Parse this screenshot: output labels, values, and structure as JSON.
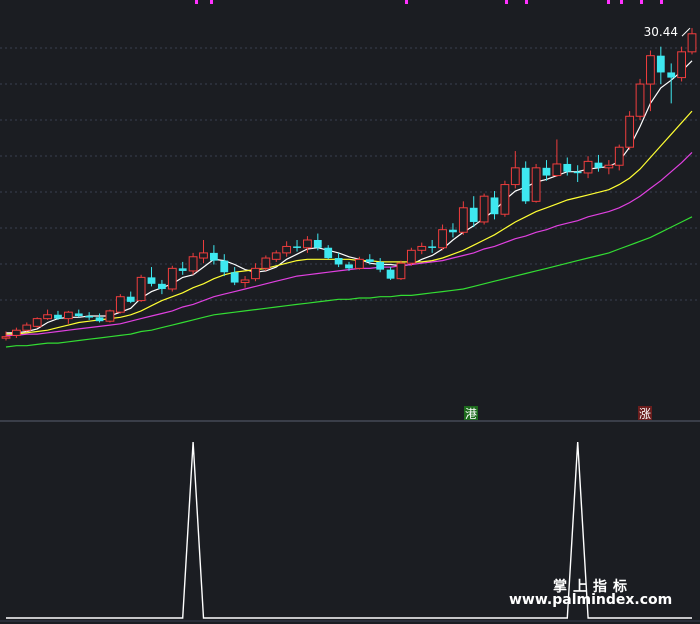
{
  "chart_data": [
    {
      "type": "candlestick",
      "panel": "main",
      "price_label": "30.44",
      "ylim": [
        5,
        32
      ],
      "grid": true,
      "candles": [
        [
          6.5,
          6.9,
          6.2,
          6.5
        ],
        [
          6.6,
          7.2,
          6.4,
          7.0
        ],
        [
          7.0,
          7.6,
          6.9,
          7.4
        ],
        [
          7.3,
          8.0,
          7.2,
          7.9
        ],
        [
          7.9,
          8.6,
          7.8,
          8.2
        ],
        [
          8.2,
          8.5,
          7.8,
          7.9
        ],
        [
          7.9,
          8.5,
          7.5,
          8.4
        ],
        [
          8.3,
          8.6,
          8.0,
          8.1
        ],
        [
          8.1,
          8.4,
          7.8,
          8.0
        ],
        [
          8.0,
          8.3,
          7.6,
          7.7
        ],
        [
          7.7,
          8.6,
          7.6,
          8.5
        ],
        [
          8.4,
          9.8,
          8.3,
          9.6
        ],
        [
          9.6,
          10.0,
          9.1,
          9.2
        ],
        [
          9.3,
          11.3,
          9.2,
          11.1
        ],
        [
          11.1,
          11.9,
          10.4,
          10.6
        ],
        [
          10.6,
          10.9,
          9.8,
          10.2
        ],
        [
          10.2,
          12.0,
          10.0,
          11.8
        ],
        [
          11.8,
          12.3,
          11.3,
          11.6
        ],
        [
          11.6,
          13.0,
          11.3,
          12.7
        ],
        [
          12.6,
          14.0,
          12.2,
          13.0
        ],
        [
          13.0,
          13.6,
          12.1,
          12.4
        ],
        [
          12.4,
          12.9,
          11.2,
          11.5
        ],
        [
          11.5,
          11.9,
          10.5,
          10.7
        ],
        [
          10.7,
          11.2,
          10.3,
          10.9
        ],
        [
          11.0,
          12.2,
          10.8,
          11.8
        ],
        [
          11.8,
          12.8,
          11.6,
          12.6
        ],
        [
          12.5,
          13.2,
          12.3,
          13.0
        ],
        [
          13.0,
          13.9,
          12.7,
          13.5
        ],
        [
          13.5,
          14.0,
          13.1,
          13.4
        ],
        [
          13.4,
          14.3,
          13.0,
          14.0
        ],
        [
          14.0,
          14.5,
          13.2,
          13.4
        ],
        [
          13.4,
          13.6,
          12.5,
          12.6
        ],
        [
          12.6,
          13.0,
          11.9,
          12.1
        ],
        [
          12.1,
          12.3,
          11.6,
          11.8
        ],
        [
          11.8,
          12.7,
          11.7,
          12.5
        ],
        [
          12.5,
          12.9,
          12.1,
          12.3
        ],
        [
          12.3,
          12.6,
          11.5,
          11.7
        ],
        [
          11.7,
          11.9,
          10.9,
          11.0
        ],
        [
          11.0,
          12.4,
          10.9,
          12.2
        ],
        [
          12.2,
          13.4,
          12.0,
          13.2
        ],
        [
          13.2,
          13.8,
          12.9,
          13.5
        ],
        [
          13.5,
          14.0,
          13.0,
          13.4
        ],
        [
          13.4,
          15.2,
          13.2,
          14.8
        ],
        [
          14.8,
          15.3,
          14.2,
          14.6
        ],
        [
          14.6,
          17.0,
          14.4,
          16.5
        ],
        [
          16.5,
          17.4,
          15.0,
          15.4
        ],
        [
          15.4,
          17.6,
          15.2,
          17.4
        ],
        [
          17.3,
          17.8,
          15.6,
          16.0
        ],
        [
          16.0,
          18.6,
          15.8,
          18.3
        ],
        [
          18.3,
          20.9,
          18.0,
          19.6
        ],
        [
          19.6,
          20.1,
          16.8,
          17.0
        ],
        [
          17.0,
          19.9,
          16.9,
          19.6
        ],
        [
          19.6,
          20.2,
          18.6,
          19.0
        ],
        [
          19.0,
          21.8,
          18.9,
          19.9
        ],
        [
          19.9,
          20.4,
          19.0,
          19.3
        ],
        [
          19.3,
          19.8,
          18.5,
          19.2
        ],
        [
          19.2,
          20.5,
          18.8,
          20.1
        ],
        [
          20.0,
          20.6,
          19.3,
          19.6
        ],
        [
          19.6,
          20.2,
          19.1,
          19.8
        ],
        [
          19.8,
          21.4,
          19.4,
          21.2
        ],
        [
          21.2,
          24.0,
          21.0,
          23.6
        ],
        [
          23.6,
          26.5,
          23.3,
          26.1
        ],
        [
          26.1,
          28.7,
          24.0,
          28.3
        ],
        [
          28.3,
          29.0,
          26.1,
          27.0
        ],
        [
          27.0,
          27.7,
          24.6,
          26.6
        ],
        [
          26.6,
          29.0,
          26.3,
          28.6
        ],
        [
          28.6,
          30.44,
          28.4,
          30.0
        ]
      ],
      "series": [
        {
          "color": "#ffffff",
          "values": [
            6.8,
            6.8,
            6.9,
            7.1,
            7.6,
            7.9,
            8.0,
            8.0,
            8.1,
            8.1,
            8.1,
            8.4,
            8.7,
            9.5,
            10.0,
            10.3,
            10.6,
            11.1,
            11.3,
            11.9,
            12.5,
            12.4,
            12.1,
            11.7,
            11.5,
            11.6,
            11.9,
            12.5,
            12.9,
            13.3,
            13.4,
            13.2,
            13.0,
            12.7,
            12.5,
            12.2,
            12.1,
            12.1,
            12.0,
            12.1,
            12.5,
            12.8,
            13.3,
            14.0,
            14.6,
            15.1,
            15.7,
            16.3,
            17.1,
            17.8,
            18.1,
            18.5,
            18.7,
            19.0,
            19.3,
            19.3,
            19.5,
            19.6,
            19.7,
            20.1,
            21.2,
            22.8,
            24.6,
            25.8,
            26.4,
            27.1,
            27.9
          ]
        },
        {
          "color": "#ffff33",
          "values": [
            6.7,
            6.7,
            6.8,
            6.9,
            7.0,
            7.2,
            7.4,
            7.6,
            7.7,
            7.8,
            7.9,
            8.0,
            8.2,
            8.5,
            8.9,
            9.3,
            9.6,
            9.9,
            10.3,
            10.6,
            11.0,
            11.3,
            11.5,
            11.6,
            11.7,
            11.8,
            12.0,
            12.2,
            12.4,
            12.5,
            12.5,
            12.5,
            12.5,
            12.5,
            12.4,
            12.4,
            12.3,
            12.3,
            12.3,
            12.3,
            12.3,
            12.4,
            12.6,
            12.9,
            13.2,
            13.6,
            14.0,
            14.4,
            14.9,
            15.4,
            15.8,
            16.2,
            16.5,
            16.8,
            17.1,
            17.3,
            17.5,
            17.7,
            17.9,
            18.3,
            18.8,
            19.5,
            20.4,
            21.3,
            22.2,
            23.1,
            24.0
          ]
        },
        {
          "color": "#e040e0",
          "values": [
            6.6,
            6.6,
            6.7,
            6.7,
            6.8,
            6.9,
            7.0,
            7.1,
            7.2,
            7.3,
            7.4,
            7.5,
            7.7,
            7.9,
            8.1,
            8.3,
            8.5,
            8.8,
            9.0,
            9.3,
            9.6,
            9.8,
            10.0,
            10.2,
            10.4,
            10.6,
            10.8,
            11.0,
            11.2,
            11.3,
            11.4,
            11.5,
            11.6,
            11.7,
            11.8,
            11.8,
            11.9,
            11.9,
            12.0,
            12.1,
            12.2,
            12.3,
            12.4,
            12.6,
            12.8,
            13.0,
            13.3,
            13.5,
            13.8,
            14.1,
            14.3,
            14.6,
            14.8,
            15.1,
            15.3,
            15.5,
            15.8,
            16.0,
            16.2,
            16.5,
            16.9,
            17.4,
            18.0,
            18.6,
            19.3,
            20.0,
            20.8
          ]
        },
        {
          "color": "#33dd33",
          "values": [
            5.7,
            5.8,
            5.8,
            5.9,
            6.0,
            6.0,
            6.1,
            6.2,
            6.3,
            6.4,
            6.5,
            6.6,
            6.7,
            6.9,
            7.0,
            7.2,
            7.4,
            7.6,
            7.8,
            8.0,
            8.2,
            8.3,
            8.4,
            8.5,
            8.6,
            8.7,
            8.8,
            8.9,
            9.0,
            9.1,
            9.2,
            9.3,
            9.4,
            9.4,
            9.5,
            9.5,
            9.6,
            9.6,
            9.7,
            9.7,
            9.8,
            9.9,
            10.0,
            10.1,
            10.2,
            10.4,
            10.6,
            10.8,
            11.0,
            11.2,
            11.4,
            11.6,
            11.8,
            12.0,
            12.2,
            12.4,
            12.6,
            12.8,
            13.0,
            13.3,
            13.6,
            13.9,
            14.2,
            14.6,
            15.0,
            15.4,
            15.8
          ]
        }
      ],
      "markers": [
        {
          "candle": 45,
          "text": "涨",
          "color": "#d01c1c"
        },
        {
          "candle": 58,
          "text": "涨",
          "color": "#d01c1c"
        }
      ]
    },
    {
      "type": "line",
      "panel": "indicator",
      "ylim": [
        0,
        1
      ],
      "color": "#ffffff",
      "spikes": [
        18,
        55
      ],
      "n": 67
    }
  ],
  "markers_label_1": "港",
  "markers_label_2": "涨",
  "watermark": {
    "title": "掌上指标",
    "url": "www.palmindex.com"
  }
}
